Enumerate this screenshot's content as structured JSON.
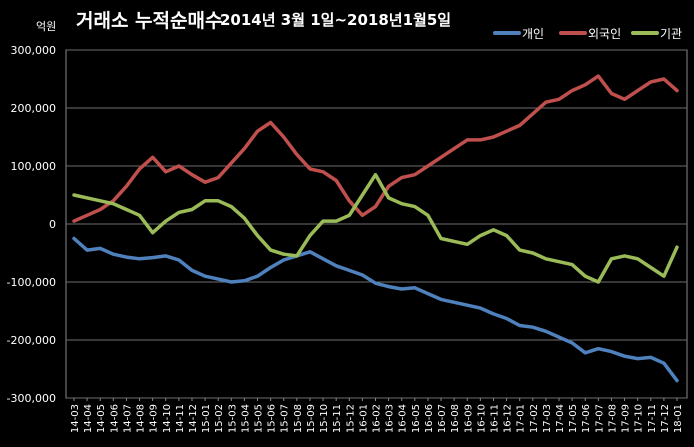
{
  "title": "거래소 누적순매수",
  "subtitle": "2014년 3월 1일~2018년1월5일",
  "unit": "억원",
  "chart_data": {
    "type": "line",
    "title": "거래소 누적순매수 2014년 3월 1일~2018년1월5일",
    "ylabel": "억원",
    "xlabel": "",
    "ylim": [
      -300000,
      300000
    ],
    "yticks": [
      300000,
      200000,
      100000,
      0,
      -100000,
      -200000,
      -300000
    ],
    "ytick_labels": [
      "300,000",
      "200,000",
      "100,000",
      "0",
      "-100,000",
      "-200,000",
      "-300,000"
    ],
    "grid": true,
    "legend_position": "top-right",
    "x": [
      "14-03",
      "14-04",
      "14-05",
      "14-06",
      "14-07",
      "14-08",
      "14-09",
      "14-10",
      "14-11",
      "14-12",
      "15-01",
      "15-02",
      "15-03",
      "15-04",
      "15-05",
      "15-06",
      "15-07",
      "15-08",
      "15-09",
      "15-10",
      "15-11",
      "15-12",
      "16-01",
      "16-02",
      "16-03",
      "16-04",
      "16-05",
      "16-06",
      "16-07",
      "16-08",
      "16-09",
      "16-10",
      "16-11",
      "16-12",
      "17-01",
      "17-02",
      "17-03",
      "17-04",
      "17-05",
      "17-06",
      "17-07",
      "17-08",
      "17-09",
      "17-10",
      "17-11",
      "17-12",
      "18-01"
    ],
    "series": [
      {
        "name": "개인",
        "color": "#4f81bd",
        "values": [
          -25000,
          -45000,
          -42000,
          -52000,
          -57000,
          -60000,
          -58000,
          -55000,
          -62000,
          -80000,
          -90000,
          -95000,
          -100000,
          -98000,
          -90000,
          -75000,
          -62000,
          -55000,
          -48000,
          -60000,
          -72000,
          -80000,
          -88000,
          -102000,
          -108000,
          -112000,
          -110000,
          -120000,
          -130000,
          -135000,
          -140000,
          -145000,
          -155000,
          -163000,
          -175000,
          -178000,
          -185000,
          -195000,
          -205000,
          -222000,
          -215000,
          -220000,
          -228000,
          -232000,
          -230000,
          -240000,
          -270000
        ]
      },
      {
        "name": "외국인",
        "color": "#c0504d",
        "values": [
          5000,
          15000,
          25000,
          40000,
          65000,
          95000,
          115000,
          90000,
          100000,
          85000,
          72000,
          80000,
          105000,
          130000,
          160000,
          175000,
          150000,
          120000,
          95000,
          90000,
          75000,
          40000,
          15000,
          30000,
          65000,
          80000,
          85000,
          100000,
          115000,
          130000,
          145000,
          145000,
          150000,
          160000,
          170000,
          190000,
          210000,
          215000,
          230000,
          240000,
          255000,
          225000,
          215000,
          230000,
          245000,
          250000,
          230000
        ]
      },
      {
        "name": "기관",
        "color": "#9bbb59",
        "values": [
          50000,
          45000,
          40000,
          35000,
          25000,
          15000,
          -15000,
          5000,
          20000,
          25000,
          40000,
          40000,
          30000,
          10000,
          -20000,
          -45000,
          -52000,
          -55000,
          -20000,
          5000,
          5000,
          15000,
          50000,
          85000,
          45000,
          35000,
          30000,
          15000,
          -25000,
          -30000,
          -35000,
          -20000,
          -10000,
          -20000,
          -45000,
          -50000,
          -60000,
          -65000,
          -70000,
          -90000,
          -100000,
          -60000,
          -55000,
          -60000,
          -75000,
          -90000,
          -40000
        ]
      }
    ]
  }
}
